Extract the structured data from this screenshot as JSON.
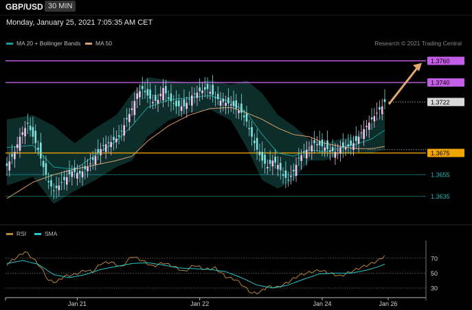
{
  "header": {
    "symbol": "GBP/USD",
    "timeframe": "30 MIN"
  },
  "timestamp": "Monday, January 25, 2021 7:05:35 AM CET",
  "legend": {
    "bb": {
      "label": "MA 20 + Bollinger Bands",
      "color": "#1a9e98"
    },
    "ma50": {
      "label": "MA 50",
      "color": "#d9a06b"
    }
  },
  "credit": "Research © 2021 Trading Central",
  "rsi_legend": {
    "rsi": {
      "label": "RSI",
      "color": "#b7873c"
    },
    "sma": {
      "label": "SMA",
      "color": "#27c7c7"
    }
  },
  "chart_data": [
    {
      "type": "candlestick",
      "ylim": [
        1.3617,
        1.3773
      ],
      "x_ticks": [
        {
          "label": "Jan 21",
          "index": 27
        },
        {
          "label": "Jan 22",
          "index": 74
        },
        {
          "label": "Jan 24",
          "index": 121
        },
        {
          "label": "Jan 26",
          "index": 146
        }
      ],
      "levels": [
        {
          "value": 1.376,
          "label": "1.3760",
          "color": "#c45ee8",
          "style": "box"
        },
        {
          "value": 1.374,
          "label": "1.3740",
          "color": "#c45ee8",
          "style": "box"
        },
        {
          "value": 1.3722,
          "label": "1.3722",
          "color": "#d9d9d9",
          "style": "price"
        },
        {
          "value": 1.3675,
          "label": "1.3675",
          "color": "#f0a500",
          "style": "box"
        },
        {
          "value": 1.3655,
          "label": "1.3655",
          "color": "#1fb5b5",
          "style": "text"
        },
        {
          "value": 1.3635,
          "label": "1.3635",
          "color": "#1fb5b5",
          "style": "text"
        }
      ],
      "close_anchors": [
        [
          0,
          1.3663
        ],
        [
          3,
          1.3676
        ],
        [
          5,
          1.369
        ],
        [
          8,
          1.3702
        ],
        [
          10,
          1.369
        ],
        [
          12,
          1.3678
        ],
        [
          14,
          1.3662
        ],
        [
          16,
          1.3648
        ],
        [
          18,
          1.364
        ],
        [
          20,
          1.3645
        ],
        [
          22,
          1.365
        ],
        [
          25,
          1.3658
        ],
        [
          28,
          1.3656
        ],
        [
          31,
          1.3662
        ],
        [
          34,
          1.3672
        ],
        [
          37,
          1.3682
        ],
        [
          40,
          1.3685
        ],
        [
          43,
          1.369
        ],
        [
          46,
          1.3706
        ],
        [
          48,
          1.3716
        ],
        [
          50,
          1.373
        ],
        [
          52,
          1.3734
        ],
        [
          54,
          1.3728
        ],
        [
          56,
          1.3722
        ],
        [
          58,
          1.3724
        ],
        [
          60,
          1.3735
        ],
        [
          62,
          1.3725
        ],
        [
          65,
          1.3718
        ],
        [
          68,
          1.3718
        ],
        [
          71,
          1.3728
        ],
        [
          74,
          1.3732
        ],
        [
          77,
          1.3734
        ],
        [
          80,
          1.3726
        ],
        [
          83,
          1.3722
        ],
        [
          86,
          1.372
        ],
        [
          88,
          1.3716
        ],
        [
          90,
          1.3712
        ],
        [
          92,
          1.3704
        ],
        [
          94,
          1.369
        ],
        [
          96,
          1.3678
        ],
        [
          98,
          1.3668
        ],
        [
          100,
          1.3662
        ],
        [
          102,
          1.3668
        ],
        [
          104,
          1.3664
        ],
        [
          106,
          1.3654
        ],
        [
          108,
          1.365
        ],
        [
          110,
          1.3658
        ],
        [
          112,
          1.367
        ],
        [
          114,
          1.3676
        ],
        [
          116,
          1.368
        ],
        [
          118,
          1.3684
        ],
        [
          120,
          1.3682
        ],
        [
          122,
          1.368
        ],
        [
          124,
          1.3677
        ],
        [
          126,
          1.3676
        ],
        [
          128,
          1.368
        ],
        [
          130,
          1.368
        ],
        [
          132,
          1.3682
        ],
        [
          134,
          1.3686
        ],
        [
          136,
          1.3694
        ],
        [
          138,
          1.37
        ],
        [
          140,
          1.3706
        ],
        [
          142,
          1.3712
        ],
        [
          144,
          1.3718
        ],
        [
          145,
          1.3722
        ]
      ],
      "bb_anchors": [
        [
          0,
          1.3706,
          1.3645
        ],
        [
          10,
          1.371,
          1.3653
        ],
        [
          18,
          1.37,
          1.3628
        ],
        [
          26,
          1.3684,
          1.364
        ],
        [
          34,
          1.3698,
          1.365
        ],
        [
          42,
          1.371,
          1.3662
        ],
        [
          48,
          1.373,
          1.3668
        ],
        [
          54,
          1.3745,
          1.369
        ],
        [
          62,
          1.3742,
          1.3705
        ],
        [
          70,
          1.374,
          1.3712
        ],
        [
          78,
          1.3742,
          1.3715
        ],
        [
          86,
          1.3738,
          1.3705
        ],
        [
          92,
          1.3742,
          1.368
        ],
        [
          98,
          1.373,
          1.365
        ],
        [
          104,
          1.371,
          1.3642
        ],
        [
          110,
          1.37,
          1.365
        ],
        [
          116,
          1.3688,
          1.3668
        ],
        [
          122,
          1.3684,
          1.3668
        ],
        [
          128,
          1.3688,
          1.3674
        ],
        [
          134,
          1.369,
          1.3676
        ],
        [
          140,
          1.3702,
          1.3675
        ],
        [
          145,
          1.3714,
          1.3678
        ]
      ],
      "ma20_anchors": [
        [
          0,
          1.368
        ],
        [
          10,
          1.3682
        ],
        [
          18,
          1.3662
        ],
        [
          26,
          1.366
        ],
        [
          34,
          1.3673
        ],
        [
          42,
          1.3686
        ],
        [
          48,
          1.37
        ],
        [
          54,
          1.3717
        ],
        [
          62,
          1.3724
        ],
        [
          70,
          1.3726
        ],
        [
          78,
          1.3728
        ],
        [
          86,
          1.3722
        ],
        [
          92,
          1.3712
        ],
        [
          98,
          1.3692
        ],
        [
          104,
          1.3675
        ],
        [
          110,
          1.3672
        ],
        [
          116,
          1.3678
        ],
        [
          122,
          1.3676
        ],
        [
          128,
          1.368
        ],
        [
          134,
          1.3683
        ],
        [
          140,
          1.3688
        ],
        [
          145,
          1.3696
        ]
      ],
      "ma50_anchors": [
        [
          0,
          1.3633
        ],
        [
          10,
          1.3648
        ],
        [
          18,
          1.3655
        ],
        [
          26,
          1.366
        ],
        [
          34,
          1.3664
        ],
        [
          42,
          1.3668
        ],
        [
          48,
          1.3672
        ],
        [
          54,
          1.3686
        ],
        [
          62,
          1.37
        ],
        [
          70,
          1.371
        ],
        [
          78,
          1.3716
        ],
        [
          86,
          1.3717
        ],
        [
          92,
          1.3712
        ],
        [
          98,
          1.3706
        ],
        [
          104,
          1.3698
        ],
        [
          110,
          1.3692
        ],
        [
          116,
          1.369
        ],
        [
          122,
          1.3684
        ],
        [
          128,
          1.3681
        ],
        [
          134,
          1.3679
        ],
        [
          140,
          1.3679
        ],
        [
          145,
          1.3681
        ]
      ]
    },
    {
      "type": "line",
      "title": "RSI",
      "ylim": [
        18,
        92
      ],
      "levels": [
        {
          "value": 70,
          "label": "70"
        },
        {
          "value": 50,
          "label": "50"
        },
        {
          "value": 30,
          "label": "30"
        }
      ],
      "series": [
        {
          "name": "RSI",
          "anchors": [
            [
              0,
              62
            ],
            [
              4,
              72
            ],
            [
              7,
              79
            ],
            [
              10,
              70
            ],
            [
              13,
              58
            ],
            [
              16,
              40
            ],
            [
              19,
              38
            ],
            [
              22,
              46
            ],
            [
              26,
              48
            ],
            [
              30,
              54
            ],
            [
              33,
              52
            ],
            [
              36,
              63
            ],
            [
              40,
              65
            ],
            [
              44,
              58
            ],
            [
              48,
              73
            ],
            [
              52,
              67
            ],
            [
              56,
              59
            ],
            [
              60,
              64
            ],
            [
              64,
              59
            ],
            [
              68,
              52
            ],
            [
              72,
              61
            ],
            [
              76,
              55
            ],
            [
              80,
              57
            ],
            [
              84,
              45
            ],
            [
              88,
              41
            ],
            [
              91,
              32
            ],
            [
              94,
              23
            ],
            [
              97,
              24
            ],
            [
              100,
              32
            ],
            [
              104,
              31
            ],
            [
              108,
              38
            ],
            [
              112,
              47
            ],
            [
              116,
              51
            ],
            [
              120,
              54
            ],
            [
              124,
              50
            ],
            [
              128,
              46
            ],
            [
              132,
              52
            ],
            [
              136,
              58
            ],
            [
              140,
              63
            ],
            [
              143,
              68
            ],
            [
              145,
              74
            ]
          ]
        },
        {
          "name": "SMA",
          "anchors": [
            [
              0,
              63
            ],
            [
              6,
              67
            ],
            [
              12,
              62
            ],
            [
              18,
              48
            ],
            [
              24,
              44
            ],
            [
              30,
              48
            ],
            [
              36,
              55
            ],
            [
              42,
              59
            ],
            [
              48,
              63
            ],
            [
              54,
              64
            ],
            [
              60,
              61
            ],
            [
              66,
              57
            ],
            [
              72,
              56
            ],
            [
              78,
              55
            ],
            [
              84,
              52
            ],
            [
              90,
              44
            ],
            [
              96,
              34
            ],
            [
              102,
              30
            ],
            [
              108,
              34
            ],
            [
              114,
              42
            ],
            [
              120,
              49
            ],
            [
              126,
              50
            ],
            [
              132,
              50
            ],
            [
              138,
              54
            ],
            [
              142,
              58
            ],
            [
              145,
              62
            ]
          ]
        }
      ]
    }
  ]
}
